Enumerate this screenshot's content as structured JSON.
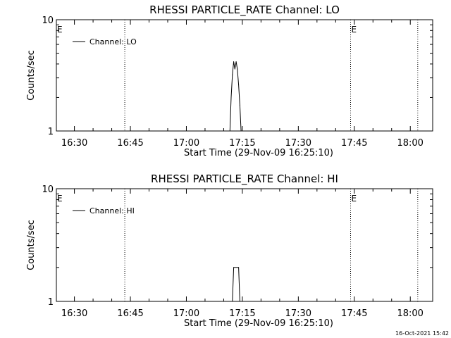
{
  "chart_data": [
    {
      "type": "line",
      "title": "RHESSI PARTICLE_RATE Channel: LO",
      "xlabel": "Start Time (29-Nov-09 16:25:10)",
      "ylabel": "Counts/sec",
      "yscale": "log",
      "ylim": [
        1,
        10
      ],
      "y_ticks": [
        "1",
        "10"
      ],
      "xlim": [
        "16:25:10",
        "18:06:00"
      ],
      "x_ticks": [
        "16:30",
        "16:45",
        "17:00",
        "17:15",
        "17:30",
        "17:45",
        "18:00"
      ],
      "legend": {
        "label": "Channel: LO",
        "placement": "top-left"
      },
      "flags": [
        {
          "label": "E",
          "time": "16:25:10"
        },
        {
          "label": "E",
          "time": "17:44:00"
        }
      ],
      "dotted_markers": [
        "16:43:30",
        "17:44:00",
        "18:02:00"
      ],
      "series": [
        {
          "name": "Channel: LO",
          "points": [
            [
              "17:11:40",
              1.0
            ],
            [
              "17:12:00",
              2.0
            ],
            [
              "17:12:20",
              3.2
            ],
            [
              "17:12:40",
              4.2
            ],
            [
              "17:13:00",
              3.6
            ],
            [
              "17:13:20",
              4.2
            ],
            [
              "17:13:40",
              3.6
            ],
            [
              "17:14:00",
              2.6
            ],
            [
              "17:14:20",
              1.7
            ],
            [
              "17:14:40",
              1.0
            ]
          ]
        }
      ]
    },
    {
      "type": "line",
      "title": "RHESSI PARTICLE_RATE Channel: HI",
      "xlabel": "Start Time (29-Nov-09 16:25:10)",
      "ylabel": "Counts/sec",
      "yscale": "log",
      "ylim": [
        1,
        10
      ],
      "y_ticks": [
        "1",
        "10"
      ],
      "xlim": [
        "16:25:10",
        "18:06:00"
      ],
      "x_ticks": [
        "16:30",
        "16:45",
        "17:00",
        "17:15",
        "17:30",
        "17:45",
        "18:00"
      ],
      "legend": {
        "label": "Channel: HI",
        "placement": "top-left"
      },
      "flags": [
        {
          "label": "E",
          "time": "16:25:10"
        },
        {
          "label": "E",
          "time": "17:44:00"
        }
      ],
      "dotted_markers": [
        "16:43:30",
        "17:44:00",
        "18:02:00"
      ],
      "series": [
        {
          "name": "Channel: HI",
          "points": [
            [
              "17:12:20",
              1.0
            ],
            [
              "17:12:40",
              2.0
            ],
            [
              "17:14:00",
              2.0
            ],
            [
              "17:14:20",
              1.0
            ]
          ]
        }
      ]
    }
  ],
  "timestamp": "16-Oct-2021 15:42"
}
